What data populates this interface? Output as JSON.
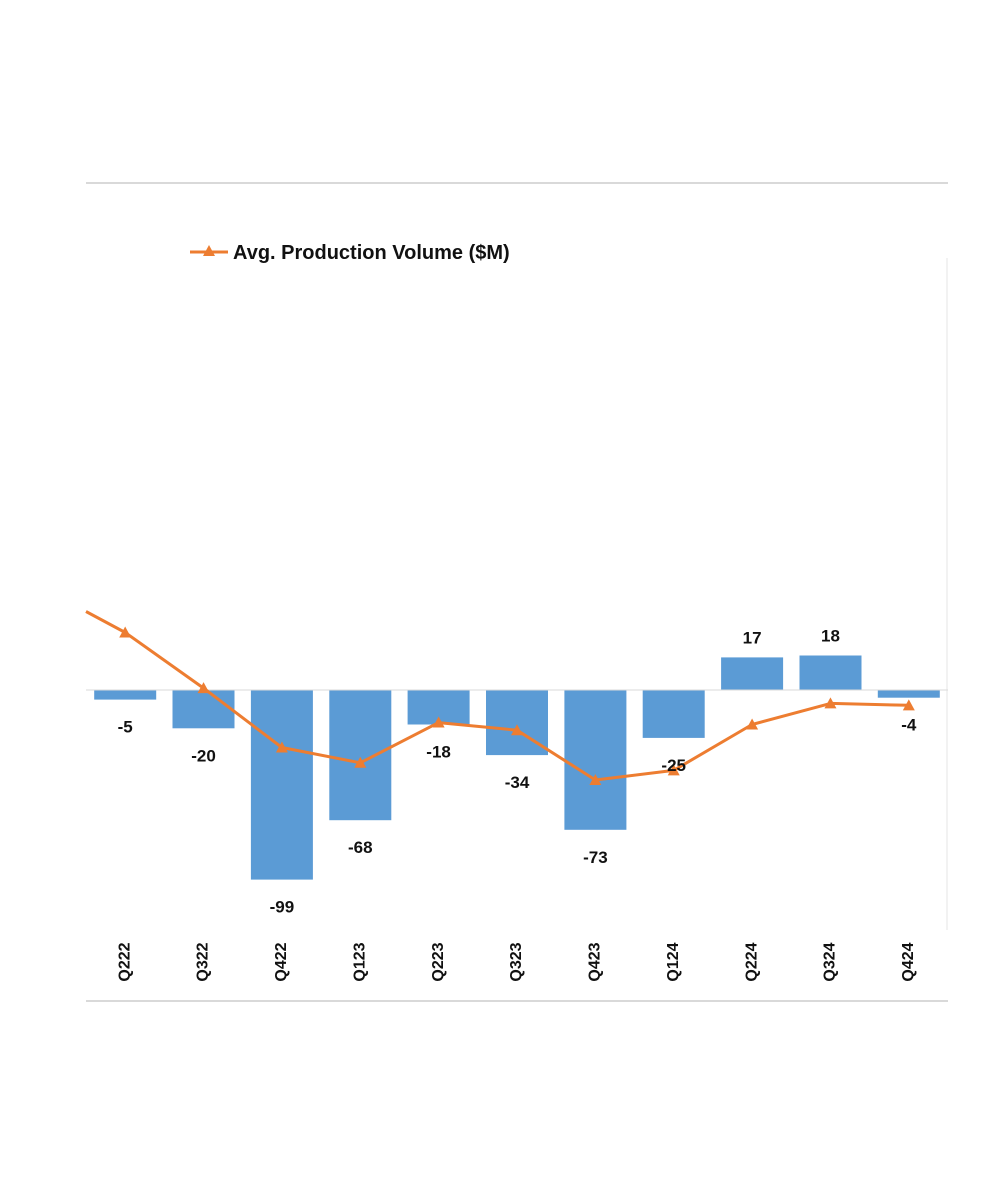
{
  "chart_data": {
    "type": "bar",
    "categories": [
      "Q222",
      "Q322",
      "Q422",
      "Q123",
      "Q223",
      "Q323",
      "Q423",
      "Q124",
      "Q224",
      "Q324",
      "Q424"
    ],
    "series": [
      {
        "type": "bar",
        "values": [
          -5,
          -20,
          -99,
          -68,
          -18,
          -34,
          -73,
          -25,
          17,
          18,
          -4
        ],
        "color": "#5b9bd5",
        "data_labels": [
          "-5",
          "-20",
          "-99",
          "-68",
          "-18",
          "-34",
          "-73",
          "-25",
          "17",
          "18",
          "-4"
        ]
      },
      {
        "type": "line",
        "name": "Avg. Production Volume ($M)",
        "values": [
          30,
          1,
          -30,
          -38,
          -17,
          -21,
          -47,
          -42,
          -18,
          -7,
          -8
        ],
        "start_value": 41,
        "color": "#ed7d31",
        "marker": "triangle"
      }
    ],
    "ylim": [
      -130,
      230
    ],
    "legend": {
      "position": "top-left",
      "entries": [
        "Avg. Production Volume ($M)"
      ]
    },
    "grid": false,
    "xlabel": "",
    "ylabel": "",
    "title": ""
  }
}
